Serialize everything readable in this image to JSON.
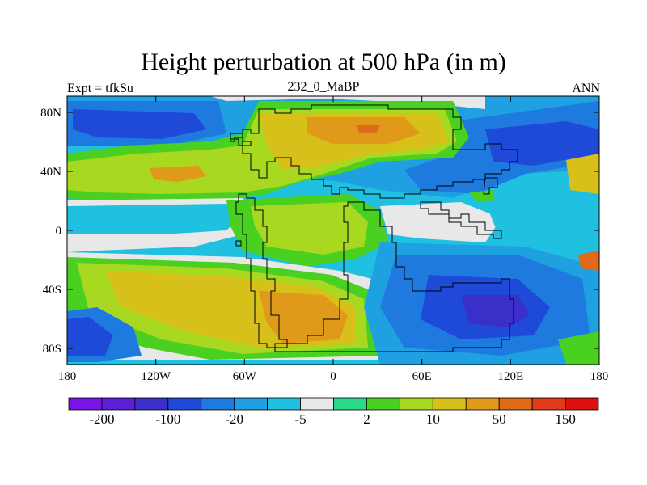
{
  "title": "Height perturbation at 500 hPa (in m)",
  "left_label": "Expt = tfkSu",
  "center_label": "232_0_MaBP",
  "right_label": "ANN",
  "axes": {
    "x_ticks": [
      "180",
      "120W",
      "60W",
      "0",
      "60E",
      "120E",
      "180"
    ],
    "y_ticks": [
      "80N",
      "40N",
      "0",
      "40S",
      "80S"
    ]
  },
  "colorbar": {
    "colors": [
      "#7a14e6",
      "#5a1fd6",
      "#3a2fc8",
      "#1f4ad8",
      "#1f7ae0",
      "#1fa0e0",
      "#1fc0e0",
      "#e8e8e8",
      "#2ad88a",
      "#4ad020",
      "#a8d820",
      "#d8c01a",
      "#e09a1a",
      "#e06a1a",
      "#e03a1a",
      "#e01010"
    ],
    "labels": [
      "-200",
      "-100",
      "-20",
      "-5",
      "2",
      "10",
      "50",
      "150"
    ]
  },
  "palette": {
    "deep_blue": "#1f4ad8",
    "blue": "#1f7ae0",
    "light_blue": "#1fa0e0",
    "cyan": "#1fc0e0",
    "neutral": "#e8e8e8",
    "green": "#4ad020",
    "lime": "#a8d820",
    "yellow": "#d8c01a",
    "orange": "#e09a1a",
    "dark_orange": "#e06a1a",
    "red": "#e03a1a",
    "purple_blue": "#3a2fc8"
  }
}
